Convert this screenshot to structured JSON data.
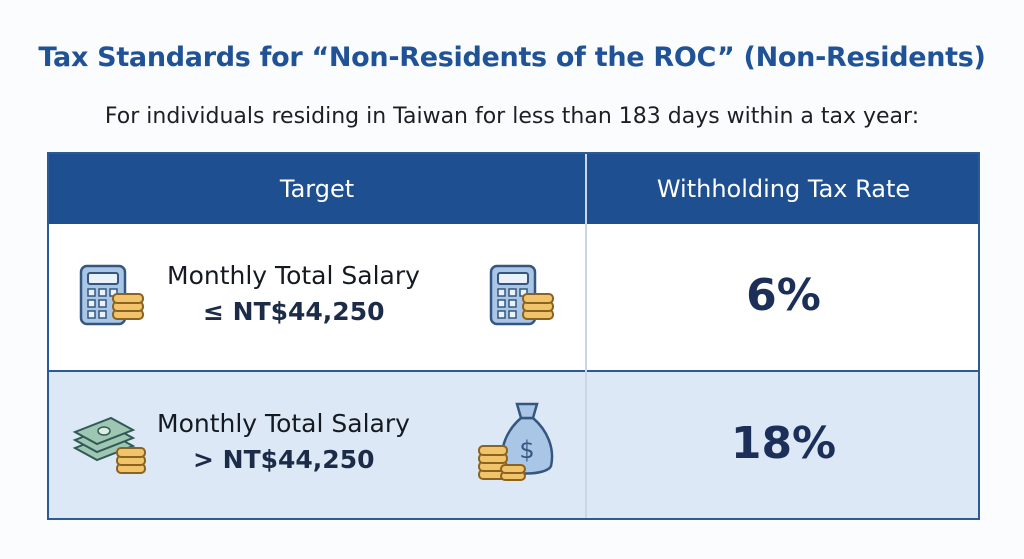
{
  "title": "Tax Standards for “Non-Residents of the ROC” (Non-Residents)",
  "subtitle": "For individuals residing in Taiwan for less than 183 days within a tax year:",
  "table": {
    "header": [
      "Target",
      "Withholding Tax Rate"
    ],
    "rows": [
      {
        "target": [
          "Monthly Total Salary",
          "≤ NT$44,250"
        ],
        "rate": "6%"
      },
      {
        "target": [
          "Monthly Total Salary",
          "> NT$44,250"
        ],
        "rate": "18%"
      }
    ]
  }
}
